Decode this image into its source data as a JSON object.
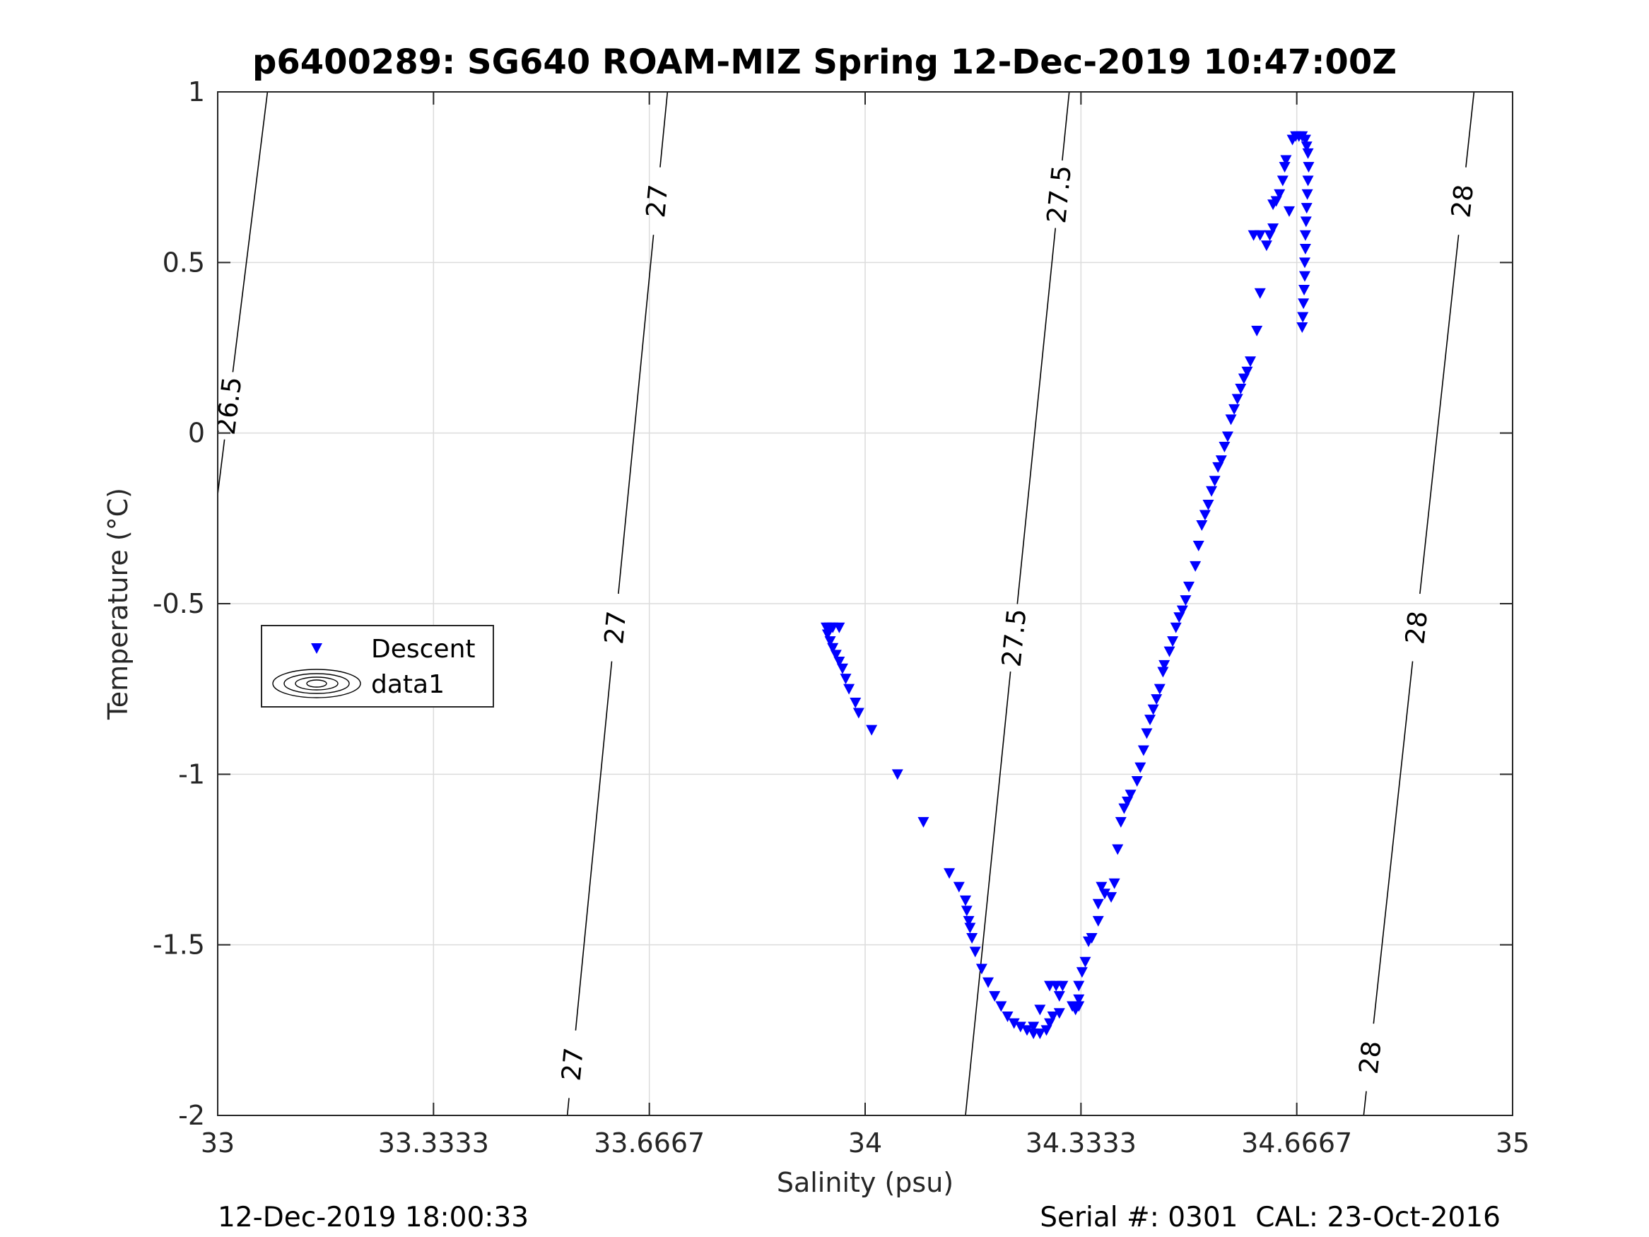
{
  "chart_data": {
    "type": "scatter",
    "title": "p6400289: SG640 ROAM-MIZ Spring 12-Dec-2019 10:47:00Z",
    "xlabel": "Salinity (psu)",
    "ylabel": "Temperature (°C)",
    "xlim": [
      33,
      35
    ],
    "ylim": [
      -2,
      1
    ],
    "xticks": [
      "33",
      "33.3333",
      "33.6667",
      "34",
      "34.3333",
      "34.6667",
      "35"
    ],
    "yticks": [
      "1",
      "0.5",
      "0",
      "-0.5",
      "-1",
      "-1.5",
      "-2"
    ],
    "grid": true,
    "legend": {
      "placement": "left-middle",
      "entries": [
        {
          "label": "Descent",
          "marker": "triangle-down",
          "color": "#0000ff"
        },
        {
          "label": "data1",
          "marker": "contour",
          "color": "#000000"
        }
      ]
    },
    "series": [
      {
        "name": "Descent",
        "marker": "triangle-down",
        "color": "#0000ff",
        "points": [
          [
            33.94,
            -0.57
          ],
          [
            33.945,
            -0.57
          ],
          [
            33.95,
            -0.57
          ],
          [
            33.96,
            -0.57
          ],
          [
            33.942,
            -0.59
          ],
          [
            33.946,
            -0.61
          ],
          [
            33.95,
            -0.63
          ],
          [
            33.955,
            -0.65
          ],
          [
            33.96,
            -0.67
          ],
          [
            33.965,
            -0.69
          ],
          [
            33.97,
            -0.72
          ],
          [
            33.975,
            -0.75
          ],
          [
            33.985,
            -0.79
          ],
          [
            33.99,
            -0.82
          ],
          [
            34.01,
            -0.87
          ],
          [
            34.05,
            -1.0
          ],
          [
            34.09,
            -1.14
          ],
          [
            34.13,
            -1.29
          ],
          [
            34.145,
            -1.33
          ],
          [
            34.155,
            -1.37
          ],
          [
            34.157,
            -1.4
          ],
          [
            34.16,
            -1.43
          ],
          [
            34.162,
            -1.45
          ],
          [
            34.165,
            -1.48
          ],
          [
            34.17,
            -1.52
          ],
          [
            34.18,
            -1.57
          ],
          [
            34.19,
            -1.61
          ],
          [
            34.2,
            -1.65
          ],
          [
            34.21,
            -1.68
          ],
          [
            34.22,
            -1.71
          ],
          [
            34.23,
            -1.73
          ],
          [
            34.24,
            -1.74
          ],
          [
            34.25,
            -1.75
          ],
          [
            34.26,
            -1.76
          ],
          [
            34.27,
            -1.76
          ],
          [
            34.28,
            -1.75
          ],
          [
            34.285,
            -1.73
          ],
          [
            34.29,
            -1.71
          ],
          [
            34.3,
            -1.7
          ],
          [
            34.26,
            -1.74
          ],
          [
            34.27,
            -1.69
          ],
          [
            34.285,
            -1.62
          ],
          [
            34.295,
            -1.62
          ],
          [
            34.3,
            -1.65
          ],
          [
            34.305,
            -1.62
          ],
          [
            34.32,
            -1.68
          ],
          [
            34.325,
            -1.69
          ],
          [
            34.33,
            -1.68
          ],
          [
            34.33,
            -1.66
          ],
          [
            34.33,
            -1.62
          ],
          [
            34.335,
            -1.58
          ],
          [
            34.34,
            -1.55
          ],
          [
            34.345,
            -1.49
          ],
          [
            34.35,
            -1.48
          ],
          [
            34.36,
            -1.43
          ],
          [
            34.36,
            -1.38
          ],
          [
            34.365,
            -1.33
          ],
          [
            34.37,
            -1.35
          ],
          [
            34.38,
            -1.36
          ],
          [
            34.385,
            -1.32
          ],
          [
            34.39,
            -1.22
          ],
          [
            34.395,
            -1.14
          ],
          [
            34.4,
            -1.1
          ],
          [
            34.405,
            -1.08
          ],
          [
            34.41,
            -1.06
          ],
          [
            34.42,
            -1.02
          ],
          [
            34.425,
            -0.98
          ],
          [
            34.43,
            -0.93
          ],
          [
            34.435,
            -0.88
          ],
          [
            34.44,
            -0.84
          ],
          [
            34.445,
            -0.81
          ],
          [
            34.45,
            -0.78
          ],
          [
            34.455,
            -0.75
          ],
          [
            34.46,
            -0.7
          ],
          [
            34.462,
            -0.68
          ],
          [
            34.47,
            -0.64
          ],
          [
            34.475,
            -0.61
          ],
          [
            34.48,
            -0.57
          ],
          [
            34.485,
            -0.54
          ],
          [
            34.49,
            -0.52
          ],
          [
            34.495,
            -0.49
          ],
          [
            34.5,
            -0.45
          ],
          [
            34.51,
            -0.39
          ],
          [
            34.515,
            -0.33
          ],
          [
            34.52,
            -0.27
          ],
          [
            34.525,
            -0.24
          ],
          [
            34.53,
            -0.21
          ],
          [
            34.535,
            -0.17
          ],
          [
            34.54,
            -0.14
          ],
          [
            34.545,
            -0.1
          ],
          [
            34.55,
            -0.08
          ],
          [
            34.555,
            -0.04
          ],
          [
            34.56,
            -0.01
          ],
          [
            34.565,
            0.04
          ],
          [
            34.57,
            0.07
          ],
          [
            34.575,
            0.1
          ],
          [
            34.58,
            0.13
          ],
          [
            34.585,
            0.16
          ],
          [
            34.59,
            0.18
          ],
          [
            34.595,
            0.21
          ],
          [
            34.605,
            0.3
          ],
          [
            34.61,
            0.41
          ],
          [
            34.6,
            0.58
          ],
          [
            34.61,
            0.58
          ],
          [
            34.62,
            0.55
          ],
          [
            34.625,
            0.58
          ],
          [
            34.63,
            0.6
          ],
          [
            34.63,
            0.67
          ],
          [
            34.635,
            0.68
          ],
          [
            34.64,
            0.7
          ],
          [
            34.645,
            0.74
          ],
          [
            34.648,
            0.78
          ],
          [
            34.65,
            0.8
          ],
          [
            34.655,
            0.65
          ],
          [
            34.66,
            0.86
          ],
          [
            34.665,
            0.87
          ],
          [
            34.67,
            0.87
          ],
          [
            34.675,
            0.87
          ],
          [
            34.68,
            0.86
          ],
          [
            34.682,
            0.84
          ],
          [
            34.684,
            0.82
          ],
          [
            34.685,
            0.78
          ],
          [
            34.684,
            0.74
          ],
          [
            34.683,
            0.7
          ],
          [
            34.682,
            0.66
          ],
          [
            34.681,
            0.62
          ],
          [
            34.68,
            0.58
          ],
          [
            34.68,
            0.54
          ],
          [
            34.679,
            0.5
          ],
          [
            34.679,
            0.46
          ],
          [
            34.678,
            0.42
          ],
          [
            34.677,
            0.38
          ],
          [
            34.676,
            0.34
          ],
          [
            34.675,
            0.31
          ]
        ]
      }
    ],
    "contours": [
      {
        "label": "26.5",
        "points": [
          [
            33.0,
            -0.18
          ],
          [
            33.0769,
            1.0
          ]
        ],
        "labels_at": [
          0.08
        ]
      },
      {
        "label": "27",
        "points": [
          [
            33.54,
            -2.0
          ],
          [
            33.6947,
            1.0
          ]
        ],
        "labels_at": [
          -1.85,
          -0.57,
          0.68
        ]
      },
      {
        "label": "27.5",
        "points": [
          [
            34.155,
            -2.0
          ],
          [
            34.3152,
            1.0
          ]
        ],
        "labels_at": [
          -0.6,
          0.7
        ]
      },
      {
        "label": "28",
        "points": [
          [
            34.77,
            -2.0
          ],
          [
            34.9404,
            1.0
          ]
        ],
        "labels_at": [
          -1.83,
          -0.57,
          0.68
        ]
      }
    ]
  },
  "footer": {
    "left": "12-Dec-2019 18:00:33",
    "right": "Serial #: 0301  CAL: 23-Oct-2016"
  }
}
